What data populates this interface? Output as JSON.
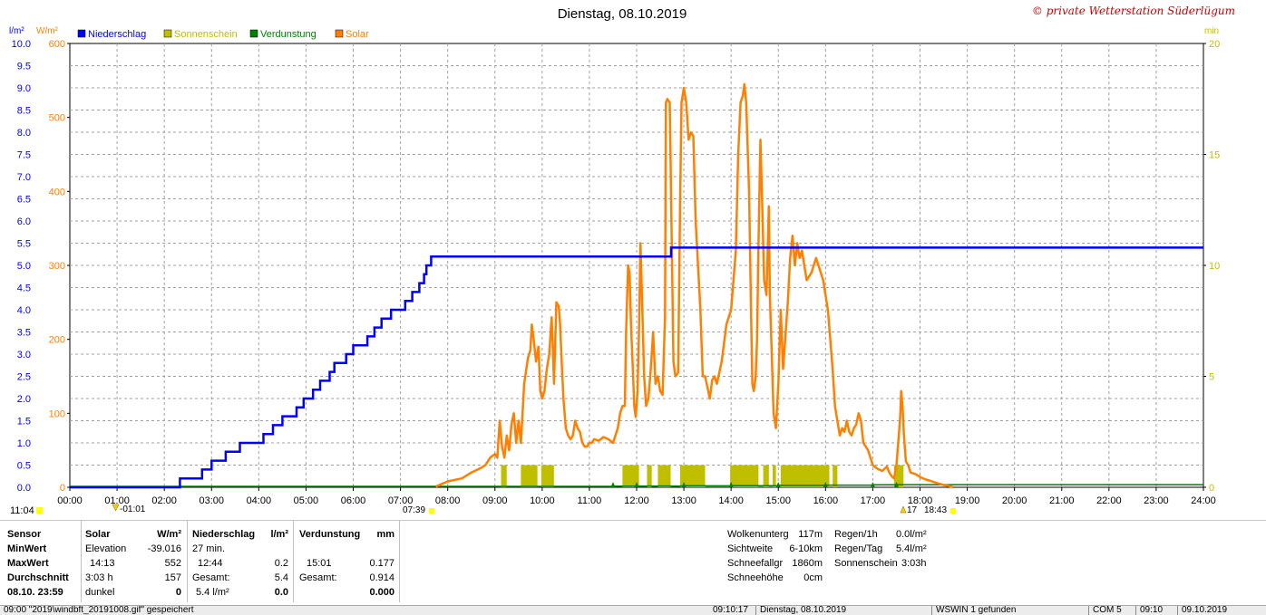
{
  "title": "Dienstag, 08.10.2019",
  "copyright": "© private Wetterstation Süderlügum",
  "legend": [
    {
      "label": "Niederschlag",
      "color": "#0000ff"
    },
    {
      "label": "Sonnenschein",
      "color": "#bfbf00"
    },
    {
      "label": "Verdunstung",
      "color": "#008000"
    },
    {
      "label": "Solar",
      "color": "#ff8000"
    }
  ],
  "axes": {
    "left1_unit": "l/m²",
    "left2_unit": "W/m²",
    "right_unit": "min",
    "left1_ticks": [
      "10.0",
      "9.5",
      "9.0",
      "8.5",
      "8.0",
      "7.5",
      "7.0",
      "6.5",
      "6.0",
      "5.5",
      "5.0",
      "4.5",
      "4.0",
      "3.5",
      "3.0",
      "2.5",
      "2.0",
      "1.5",
      "1.0",
      "0.5",
      "0.0"
    ],
    "left2_ticks": [
      "600",
      "500",
      "400",
      "300",
      "200",
      "100",
      "0"
    ],
    "right_ticks": [
      "20",
      "15",
      "10",
      "5",
      "0"
    ],
    "x_ticks": [
      "00:00",
      "01:00",
      "02:00",
      "03:00",
      "04:00",
      "05:00",
      "06:00",
      "07:00",
      "08:00",
      "09:00",
      "10:00",
      "11:00",
      "12:00",
      "13:00",
      "14:00",
      "15:00",
      "16:00",
      "17:00",
      "18:00",
      "19:00",
      "20:00",
      "21:00",
      "22:00",
      "23:00",
      "24:00"
    ]
  },
  "markers": {
    "moonrise": "11:04",
    "moonset": "-01:01",
    "sunrise": "07:39",
    "sunset_label": "17",
    "sunset": "18:43"
  },
  "chart_data": {
    "type": "line",
    "x_unit": "hour",
    "xlim": [
      0,
      24
    ],
    "ylim_precip": [
      0,
      10
    ],
    "ylim_solar": [
      0,
      600
    ],
    "ylim_sunshine": [
      0,
      20
    ],
    "series": [
      {
        "name": "Niederschlag",
        "color": "#0000ff",
        "step": true,
        "points": [
          [
            0,
            0
          ],
          [
            2.33,
            0
          ],
          [
            2.33,
            0.2
          ],
          [
            2.8,
            0.2
          ],
          [
            2.8,
            0.4
          ],
          [
            3.0,
            0.4
          ],
          [
            3.0,
            0.6
          ],
          [
            3.3,
            0.6
          ],
          [
            3.3,
            0.8
          ],
          [
            3.6,
            0.8
          ],
          [
            3.6,
            1.0
          ],
          [
            4.1,
            1.0
          ],
          [
            4.1,
            1.2
          ],
          [
            4.3,
            1.2
          ],
          [
            4.3,
            1.4
          ],
          [
            4.5,
            1.4
          ],
          [
            4.5,
            1.6
          ],
          [
            4.8,
            1.6
          ],
          [
            4.8,
            1.8
          ],
          [
            4.95,
            1.8
          ],
          [
            4.95,
            2.0
          ],
          [
            5.15,
            2.0
          ],
          [
            5.15,
            2.2
          ],
          [
            5.3,
            2.2
          ],
          [
            5.3,
            2.4
          ],
          [
            5.5,
            2.4
          ],
          [
            5.5,
            2.6
          ],
          [
            5.6,
            2.6
          ],
          [
            5.6,
            2.8
          ],
          [
            5.85,
            2.8
          ],
          [
            5.85,
            3.0
          ],
          [
            6.0,
            3.0
          ],
          [
            6.0,
            3.2
          ],
          [
            6.3,
            3.2
          ],
          [
            6.3,
            3.4
          ],
          [
            6.45,
            3.4
          ],
          [
            6.45,
            3.6
          ],
          [
            6.6,
            3.6
          ],
          [
            6.6,
            3.8
          ],
          [
            6.8,
            3.8
          ],
          [
            6.8,
            4.0
          ],
          [
            7.1,
            4.0
          ],
          [
            7.1,
            4.2
          ],
          [
            7.25,
            4.2
          ],
          [
            7.25,
            4.4
          ],
          [
            7.4,
            4.4
          ],
          [
            7.4,
            4.6
          ],
          [
            7.5,
            4.6
          ],
          [
            7.5,
            4.8
          ],
          [
            7.55,
            4.8
          ],
          [
            7.55,
            5.0
          ],
          [
            7.65,
            5.0
          ],
          [
            7.65,
            5.2
          ],
          [
            7.73,
            5.2
          ],
          [
            12.73,
            5.2
          ],
          [
            12.73,
            5.4
          ],
          [
            24,
            5.4
          ]
        ]
      },
      {
        "name": "Sonnenschein",
        "color": "#bfbf00",
        "bars": [
          [
            9.13,
            9.25
          ],
          [
            9.55,
            9.9
          ],
          [
            9.98,
            10.25
          ],
          [
            11.7,
            12.05
          ],
          [
            12.22,
            12.32
          ],
          [
            12.45,
            12.72
          ],
          [
            12.92,
            13.45
          ],
          [
            13.98,
            14.58
          ],
          [
            14.68,
            14.8
          ],
          [
            14.88,
            14.95
          ],
          [
            15.05,
            16.08
          ],
          [
            16.15,
            16.25
          ],
          [
            17.45,
            17.65
          ]
        ],
        "bar_value_min": 1.0
      },
      {
        "name": "Verdunstung",
        "color": "#008000",
        "steps": [
          [
            11.5,
            0.1
          ],
          [
            12.0,
            0.2
          ],
          [
            13.0,
            0.3
          ],
          [
            14.0,
            0.4
          ],
          [
            15.0,
            0.55
          ],
          [
            16.0,
            0.7
          ],
          [
            17.0,
            0.85
          ],
          [
            17.5,
            0.914
          ]
        ]
      },
      {
        "name": "Solar",
        "color": "#ff8000",
        "points": [
          [
            7.75,
            1
          ],
          [
            8.0,
            8
          ],
          [
            8.3,
            12
          ],
          [
            8.5,
            20
          ],
          [
            8.7,
            26
          ],
          [
            8.8,
            30
          ],
          [
            8.9,
            40
          ],
          [
            9.0,
            45
          ],
          [
            9.05,
            40
          ],
          [
            9.1,
            90
          ],
          [
            9.15,
            55
          ],
          [
            9.2,
            40
          ],
          [
            9.25,
            70
          ],
          [
            9.3,
            50
          ],
          [
            9.35,
            85
          ],
          [
            9.4,
            100
          ],
          [
            9.45,
            60
          ],
          [
            9.5,
            90
          ],
          [
            9.55,
            60
          ],
          [
            9.62,
            140
          ],
          [
            9.7,
            175
          ],
          [
            9.75,
            185
          ],
          [
            9.78,
            220
          ],
          [
            9.82,
            200
          ],
          [
            9.87,
            170
          ],
          [
            9.92,
            190
          ],
          [
            9.96,
            130
          ],
          [
            10.0,
            120
          ],
          [
            10.05,
            130
          ],
          [
            10.1,
            160
          ],
          [
            10.15,
            180
          ],
          [
            10.2,
            230
          ],
          [
            10.22,
            200
          ],
          [
            10.25,
            140
          ],
          [
            10.3,
            250
          ],
          [
            10.35,
            245
          ],
          [
            10.38,
            220
          ],
          [
            10.42,
            160
          ],
          [
            10.45,
            120
          ],
          [
            10.5,
            80
          ],
          [
            10.55,
            70
          ],
          [
            10.6,
            65
          ],
          [
            10.65,
            70
          ],
          [
            10.7,
            90
          ],
          [
            10.75,
            80
          ],
          [
            10.8,
            75
          ],
          [
            10.85,
            60
          ],
          [
            10.9,
            55
          ],
          [
            10.95,
            55
          ],
          [
            11.0,
            60
          ],
          [
            11.05,
            60
          ],
          [
            11.1,
            65
          ],
          [
            11.2,
            63
          ],
          [
            11.3,
            68
          ],
          [
            11.4,
            65
          ],
          [
            11.5,
            60
          ],
          [
            11.6,
            80
          ],
          [
            11.65,
            100
          ],
          [
            11.7,
            110
          ],
          [
            11.75,
            110
          ],
          [
            11.78,
            215
          ],
          [
            11.82,
            300
          ],
          [
            11.85,
            290
          ],
          [
            11.88,
            220
          ],
          [
            11.92,
            160
          ],
          [
            11.95,
            110
          ],
          [
            11.98,
            95
          ],
          [
            12.02,
            130
          ],
          [
            12.05,
            210
          ],
          [
            12.08,
            330
          ],
          [
            12.12,
            240
          ],
          [
            12.16,
            150
          ],
          [
            12.2,
            110
          ],
          [
            12.25,
            120
          ],
          [
            12.3,
            160
          ],
          [
            12.35,
            210
          ],
          [
            12.4,
            140
          ],
          [
            12.45,
            150
          ],
          [
            12.5,
            130
          ],
          [
            12.55,
            125
          ],
          [
            12.6,
            230
          ],
          [
            12.62,
            520
          ],
          [
            12.65,
            525
          ],
          [
            12.7,
            520
          ],
          [
            12.75,
            300
          ],
          [
            12.78,
            170
          ],
          [
            12.82,
            150
          ],
          [
            12.88,
            155
          ],
          [
            12.92,
            380
          ],
          [
            12.95,
            520
          ],
          [
            13.0,
            540
          ],
          [
            13.05,
            520
          ],
          [
            13.1,
            470
          ],
          [
            13.15,
            480
          ],
          [
            13.2,
            475
          ],
          [
            13.25,
            360
          ],
          [
            13.3,
            300
          ],
          [
            13.35,
            240
          ],
          [
            13.4,
            150
          ],
          [
            13.45,
            150
          ],
          [
            13.55,
            120
          ],
          [
            13.6,
            145
          ],
          [
            13.65,
            150
          ],
          [
            13.7,
            140
          ],
          [
            13.8,
            170
          ],
          [
            13.9,
            220
          ],
          [
            14.0,
            240
          ],
          [
            14.05,
            280
          ],
          [
            14.1,
            320
          ],
          [
            14.15,
            450
          ],
          [
            14.2,
            520
          ],
          [
            14.25,
            530
          ],
          [
            14.28,
            545
          ],
          [
            14.32,
            520
          ],
          [
            14.38,
            400
          ],
          [
            14.42,
            250
          ],
          [
            14.45,
            140
          ],
          [
            14.48,
            130
          ],
          [
            14.52,
            150
          ],
          [
            14.55,
            200
          ],
          [
            14.58,
            330
          ],
          [
            14.62,
            470
          ],
          [
            14.66,
            380
          ],
          [
            14.7,
            280
          ],
          [
            14.75,
            260
          ],
          [
            14.8,
            380
          ],
          [
            14.82,
            260
          ],
          [
            14.86,
            180
          ],
          [
            14.9,
            100
          ],
          [
            14.95,
            80
          ],
          [
            15.0,
            140
          ],
          [
            15.05,
            240
          ],
          [
            15.1,
            160
          ],
          [
            15.2,
            250
          ],
          [
            15.25,
            310
          ],
          [
            15.3,
            340
          ],
          [
            15.35,
            300
          ],
          [
            15.4,
            330
          ],
          [
            15.45,
            310
          ],
          [
            15.5,
            320
          ],
          [
            15.55,
            300
          ],
          [
            15.6,
            280
          ],
          [
            15.7,
            290
          ],
          [
            15.8,
            310
          ],
          [
            15.85,
            300
          ],
          [
            15.9,
            290
          ],
          [
            15.95,
            280
          ],
          [
            16.0,
            260
          ],
          [
            16.05,
            240
          ],
          [
            16.1,
            200
          ],
          [
            16.15,
            160
          ],
          [
            16.2,
            110
          ],
          [
            16.3,
            70
          ],
          [
            16.35,
            80
          ],
          [
            16.4,
            75
          ],
          [
            16.45,
            90
          ],
          [
            16.5,
            75
          ],
          [
            16.55,
            70
          ],
          [
            16.6,
            80
          ],
          [
            16.65,
            85
          ],
          [
            16.7,
            100
          ],
          [
            16.75,
            90
          ],
          [
            16.8,
            60
          ],
          [
            16.85,
            55
          ],
          [
            16.9,
            50
          ],
          [
            16.95,
            40
          ],
          [
            17.0,
            30
          ],
          [
            17.1,
            25
          ],
          [
            17.2,
            22
          ],
          [
            17.3,
            28
          ],
          [
            17.35,
            20
          ],
          [
            17.4,
            15
          ],
          [
            17.45,
            12
          ],
          [
            17.5,
            30
          ],
          [
            17.55,
            70
          ],
          [
            17.58,
            95
          ],
          [
            17.6,
            130
          ],
          [
            17.63,
            110
          ],
          [
            17.66,
            70
          ],
          [
            17.7,
            35
          ],
          [
            17.75,
            30
          ],
          [
            17.8,
            20
          ],
          [
            17.9,
            18
          ],
          [
            18.0,
            14
          ],
          [
            18.1,
            11
          ],
          [
            18.2,
            9
          ],
          [
            18.3,
            7
          ],
          [
            18.4,
            5
          ],
          [
            18.5,
            3
          ],
          [
            18.6,
            2
          ],
          [
            18.7,
            0
          ]
        ]
      }
    ]
  },
  "stats": {
    "rowhdr": [
      "Sensor",
      "MinWert",
      "MaxWert",
      "Durchschnitt",
      "08.10. 23:59"
    ],
    "solar_title": "Solar",
    "solar_unit": "W/m²",
    "solar_rows": [
      [
        "Elevation",
        "-39.016"
      ],
      [
        "14:13",
        "552"
      ],
      [
        "3:03 h",
        "157"
      ],
      [
        "dunkel",
        "0"
      ]
    ],
    "precip_title": "Niederschlag",
    "precip_unit": "l/m²",
    "precip_rows": [
      [
        "27 min.",
        ""
      ],
      [
        "12:44",
        "0.2"
      ],
      [
        "Gesamt:",
        "5.4"
      ],
      [
        "5.4 l/m²",
        "0.0"
      ]
    ],
    "evap_title": "Verdunstung",
    "evap_unit": "mm",
    "evap_rows": [
      [
        "",
        ""
      ],
      [
        "15:01",
        "0.177"
      ],
      [
        "Gesamt:",
        "0.914"
      ],
      [
        "",
        "0.000"
      ]
    ],
    "right1": [
      [
        "Wolkenunterg",
        "117m"
      ],
      [
        "Sichtweite",
        "6-10km"
      ],
      [
        "Schneefallgr",
        "1860m"
      ],
      [
        "Schneehöhe",
        "0cm"
      ]
    ],
    "right2": [
      [
        "Regen/1h",
        "0.0l/m²"
      ],
      [
        "Regen/Tag",
        "5.4l/m²"
      ],
      [
        "Sonnenschein",
        "3:03h"
      ]
    ]
  },
  "statusbar": [
    "09:00 \"2019\\windbft_20191008.gif\" gespeichert",
    "09:10:17",
    "Dienstag, 08.10.2019",
    "WSWIN 1 gefunden",
    "COM 5",
    "09:10",
    "09.10.2019"
  ]
}
